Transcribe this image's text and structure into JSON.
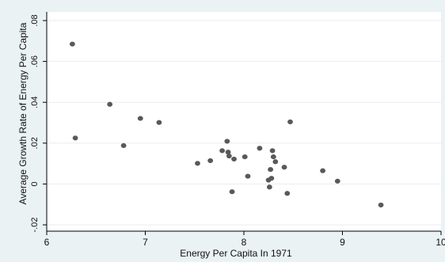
{
  "chart_data": {
    "type": "scatter",
    "title": "",
    "xlabel": "Energy Per Capita In 1971",
    "ylabel": "Average Growth Rate of Energy Per Capita",
    "xlim": [
      6,
      10
    ],
    "ylim": [
      -0.02,
      0.08
    ],
    "xticks": [
      6,
      7,
      8,
      9,
      10
    ],
    "xtick_labels": [
      "6",
      "7",
      "8",
      "9",
      "10"
    ],
    "yticks": [
      -0.02,
      0,
      0.02,
      0.04,
      0.06,
      0.08
    ],
    "ytick_labels": [
      "-.02",
      "0",
      ".02",
      ".04",
      ".06",
      ".08"
    ],
    "grid": "horizontal",
    "colors": {
      "marker": "#595959",
      "outer_background": "#eaf2f3",
      "plot_background": "#ffffff",
      "grid": "#e7eef0"
    },
    "points": [
      {
        "x": 6.26,
        "y": 0.0685
      },
      {
        "x": 6.29,
        "y": 0.0225
      },
      {
        "x": 6.64,
        "y": 0.039
      },
      {
        "x": 6.78,
        "y": 0.0188
      },
      {
        "x": 6.95,
        "y": 0.0321
      },
      {
        "x": 7.14,
        "y": 0.0301
      },
      {
        "x": 7.53,
        "y": 0.0101
      },
      {
        "x": 7.66,
        "y": 0.0114
      },
      {
        "x": 7.78,
        "y": 0.0163
      },
      {
        "x": 7.83,
        "y": 0.0209
      },
      {
        "x": 7.84,
        "y": 0.0156
      },
      {
        "x": 7.85,
        "y": 0.0137
      },
      {
        "x": 7.88,
        "y": -0.0038
      },
      {
        "x": 7.9,
        "y": 0.0122
      },
      {
        "x": 8.01,
        "y": 0.0133
      },
      {
        "x": 8.04,
        "y": 0.0038
      },
      {
        "x": 8.16,
        "y": 0.0175
      },
      {
        "x": 8.25,
        "y": 0.0019
      },
      {
        "x": 8.26,
        "y": -0.0015
      },
      {
        "x": 8.27,
        "y": 0.0071
      },
      {
        "x": 8.28,
        "y": 0.0028
      },
      {
        "x": 8.29,
        "y": 0.0163
      },
      {
        "x": 8.3,
        "y": 0.0133
      },
      {
        "x": 8.32,
        "y": 0.0109
      },
      {
        "x": 8.41,
        "y": 0.0082
      },
      {
        "x": 8.44,
        "y": -0.0046
      },
      {
        "x": 8.47,
        "y": 0.0304
      },
      {
        "x": 8.8,
        "y": 0.0065
      },
      {
        "x": 8.95,
        "y": 0.0014
      },
      {
        "x": 9.39,
        "y": -0.0103
      }
    ]
  }
}
